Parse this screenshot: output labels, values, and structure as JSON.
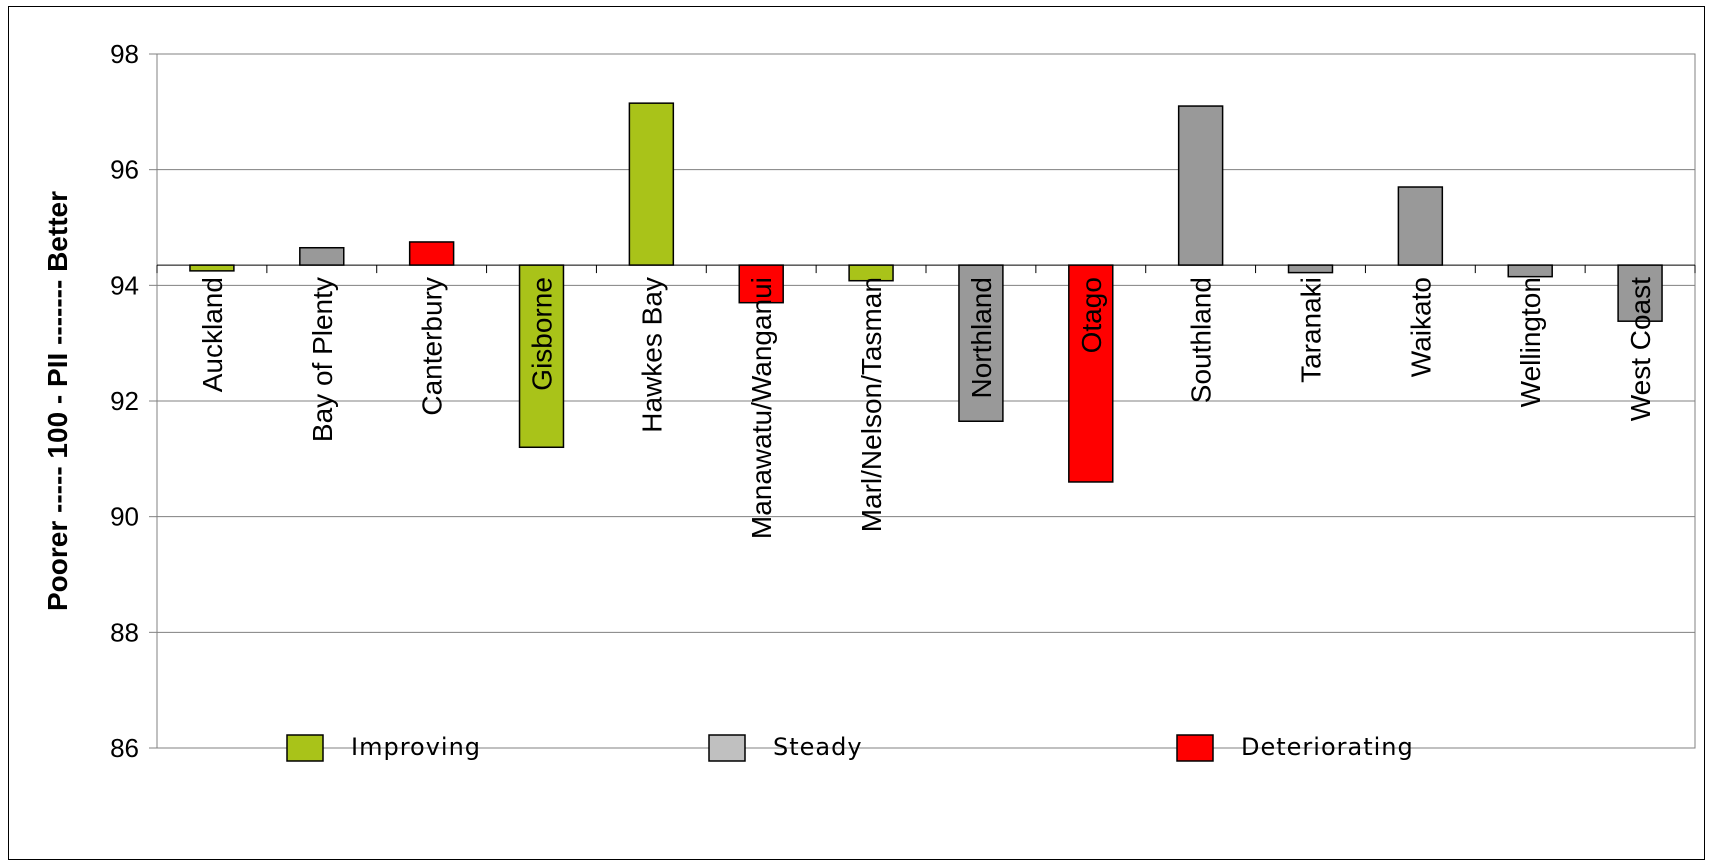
{
  "chart_data": {
    "type": "bar",
    "ylabel": "Poorer ----- 100 - PII ------- Better",
    "ylim": [
      86,
      98
    ],
    "yticks": [
      86,
      88,
      90,
      92,
      94,
      96,
      98
    ],
    "baseline": 94.35,
    "grid": true,
    "categories": [
      "Auckland",
      "Bay of Plenty",
      "Canterbury",
      "Gisborne",
      "Hawkes Bay",
      "Manawatu/Wanganui",
      "Marl/Nelson/Tasman",
      "Northland",
      "Otago",
      "Southland",
      "Taranaki",
      "Waikato",
      "Wellington",
      "West Coast"
    ],
    "values": [
      94.25,
      94.65,
      94.75,
      91.2,
      97.15,
      93.7,
      94.08,
      91.65,
      90.6,
      97.1,
      94.22,
      95.7,
      94.15,
      93.38
    ],
    "trend": [
      "Improving",
      "Steady",
      "Deteriorating",
      "Improving",
      "Improving",
      "Deteriorating",
      "Improving",
      "Steady",
      "Deteriorating",
      "Steady",
      "Steady",
      "Steady",
      "Steady",
      "Steady"
    ],
    "legend": [
      {
        "name": "Improving",
        "color": "#a9c319"
      },
      {
        "name": "Steady",
        "color": "#c0c0c0"
      },
      {
        "name": "Deteriorating",
        "color": "#ff0000"
      }
    ],
    "legend_position": "bottom",
    "colors": {
      "Improving": "#a9c319",
      "Steady": "#999999",
      "Deteriorating": "#ff0000"
    }
  }
}
